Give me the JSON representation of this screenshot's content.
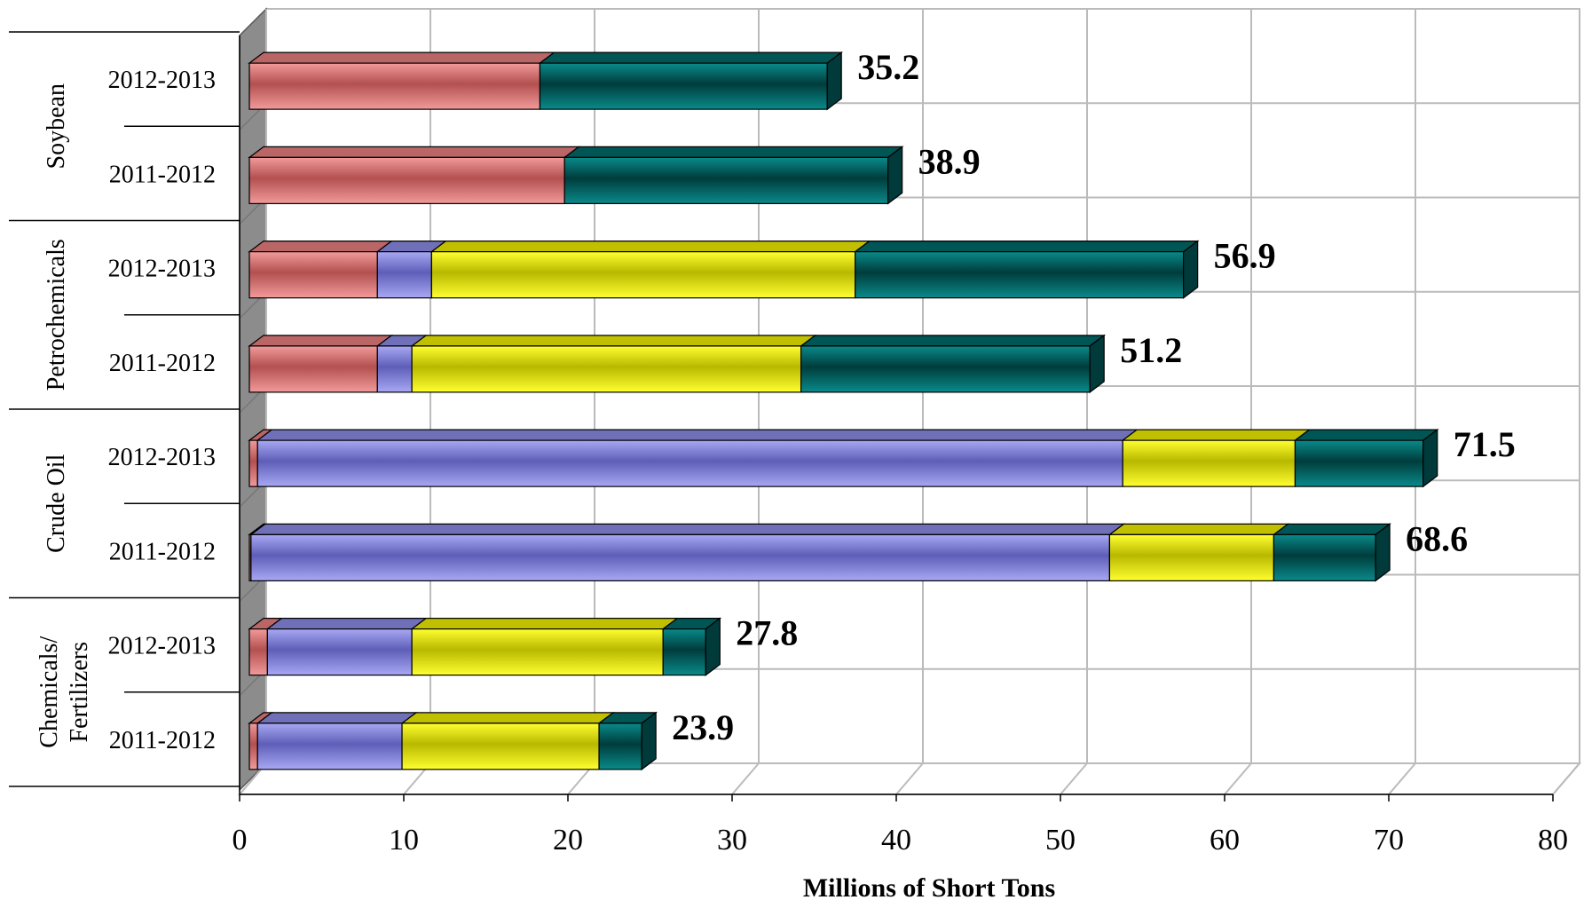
{
  "chart_data": {
    "type": "bar",
    "orientation": "horizontal",
    "stacked": true,
    "three_d": true,
    "xlabel": "Millions of Short Tons",
    "xlim": [
      0,
      80
    ],
    "xticks": [
      "0",
      "10",
      "20",
      "30",
      "40",
      "50",
      "60",
      "70",
      "80"
    ],
    "grid": true,
    "legend": "none",
    "series_colors": [
      "#e98080",
      "#8c8ce6",
      "#f0f000",
      "#006a6a"
    ],
    "groups": [
      {
        "name": "Soybean",
        "bars": [
          {
            "year": "2012-2013",
            "segments": [
              17.7,
              0,
              0,
              17.5
            ],
            "total_label": "35.2"
          },
          {
            "year": "2011-2012",
            "segments": [
              19.2,
              0,
              0,
              19.7
            ],
            "total_label": "38.9"
          }
        ]
      },
      {
        "name": "Petrochemicals",
        "bars": [
          {
            "year": "2012-2013",
            "segments": [
              7.8,
              3.3,
              25.8,
              20.0
            ],
            "total_label": "56.9"
          },
          {
            "year": "2011-2012",
            "segments": [
              7.8,
              2.1,
              23.7,
              17.6
            ],
            "total_label": "51.2"
          }
        ]
      },
      {
        "name": "Crude Oil",
        "bars": [
          {
            "year": "2012-2013",
            "segments": [
              0.5,
              52.7,
              10.5,
              7.8
            ],
            "total_label": "71.5"
          },
          {
            "year": "2011-2012",
            "segments": [
              0.1,
              52.3,
              10.0,
              6.2
            ],
            "total_label": "68.6"
          }
        ]
      },
      {
        "name": "Chemicals/ Fertilizers",
        "name_lines": [
          "Chemicals/",
          "Fertilizers"
        ],
        "bars": [
          {
            "year": "2012-2013",
            "segments": [
              1.1,
              8.8,
              15.3,
              2.6
            ],
            "total_label": "27.8"
          },
          {
            "year": "2011-2012",
            "segments": [
              0.5,
              8.8,
              12.0,
              2.6
            ],
            "total_label": "23.9"
          }
        ]
      }
    ]
  }
}
